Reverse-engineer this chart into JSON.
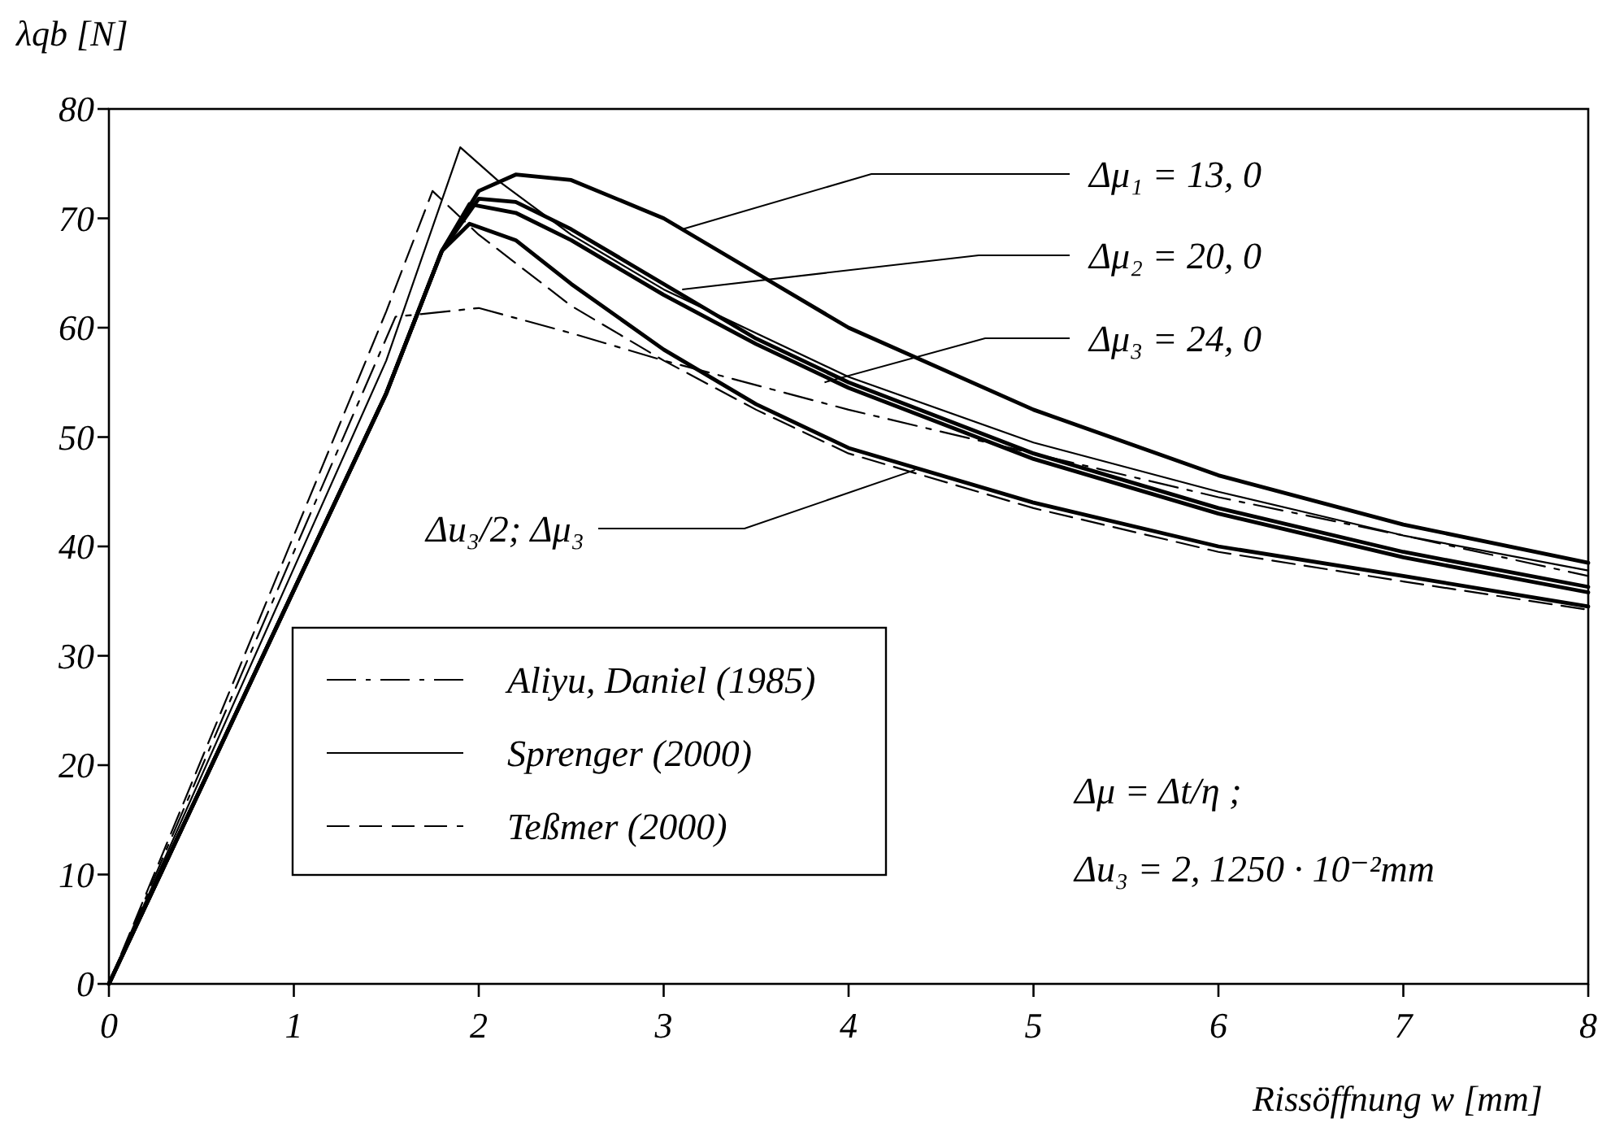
{
  "chart_data": {
    "type": "line",
    "xlabel": "Rissöffnung  w  [mm]",
    "ylabel": "λqb  [N]",
    "xlim": [
      0,
      8
    ],
    "ylim": [
      0,
      80
    ],
    "xticks": [
      0,
      1,
      2,
      3,
      4,
      5,
      6,
      7,
      8
    ],
    "yticks": [
      0,
      10,
      20,
      30,
      40,
      50,
      60,
      70,
      80
    ],
    "grid": false,
    "legend": "bottom left",
    "series": [
      {
        "name": "Aliyu, Daniel (1985)",
        "color": "#000000",
        "line_style": "dashdot",
        "x": [
          0,
          1,
          1.55,
          2,
          2.5,
          3,
          4,
          5,
          6,
          7,
          8
        ],
        "values": [
          0,
          39.5,
          61,
          61.8,
          59.5,
          57,
          52.5,
          48.5,
          44.5,
          41,
          37.3
        ]
      },
      {
        "name": "Sprenger (2000)",
        "color": "#000000",
        "line_style": "solid",
        "x": [
          0,
          1,
          1.5,
          1.9,
          2.1,
          2.5,
          3,
          4,
          5,
          6,
          7,
          8
        ],
        "values": [
          0,
          38,
          57,
          76.5,
          73.5,
          68.5,
          63.5,
          55.5,
          49.5,
          45,
          41,
          37.8
        ]
      },
      {
        "name": "Teßmer (2000)",
        "color": "#000000",
        "line_style": "dashed",
        "x": [
          0,
          1,
          1.5,
          1.75,
          2,
          2.5,
          3,
          3.5,
          4,
          5,
          6,
          7,
          8
        ],
        "values": [
          0,
          41,
          61.5,
          72.5,
          68.5,
          62,
          57,
          52.5,
          48.5,
          43.5,
          39.5,
          36.8,
          34.2
        ]
      },
      {
        "color": "#000000",
        "line_style": "solid",
        "x": [
          0,
          1,
          1.5,
          1.8,
          2,
          2.2,
          2.5,
          3,
          3.5,
          4,
          5,
          6,
          7,
          8
        ],
        "values": [
          0,
          36,
          54,
          67,
          72.5,
          74,
          73.5,
          70,
          65,
          60,
          52.5,
          46.5,
          42,
          38.5
        ]
      },
      {
        "color": "#000000",
        "line_style": "solid",
        "x": [
          0,
          1,
          1.5,
          1.8,
          2,
          2.2,
          2.5,
          3,
          3.5,
          4,
          5,
          6,
          7,
          8
        ],
        "values": [
          0,
          36,
          54,
          67,
          71.8,
          71.5,
          69,
          64,
          59,
          55,
          48.5,
          43.5,
          39.5,
          36.3
        ]
      },
      {
        "color": "#000000",
        "line_style": "solid",
        "x": [
          0,
          1,
          1.5,
          1.8,
          1.95,
          2.2,
          2.5,
          3,
          3.5,
          4,
          5,
          6,
          7,
          8
        ],
        "values": [
          0,
          36,
          54,
          67,
          71.3,
          70.5,
          68,
          63,
          58.5,
          54.5,
          48,
          43,
          39,
          35.8
        ]
      },
      {
        "color": "#000000",
        "line_style": "solid",
        "x": [
          0,
          1,
          1.5,
          1.8,
          1.95,
          2.2,
          2.5,
          3,
          3.5,
          4,
          5,
          6,
          7,
          8
        ],
        "values": [
          0,
          36,
          54,
          67,
          69.5,
          68,
          64,
          58,
          53,
          49,
          44,
          40,
          37.3,
          34.5
        ]
      }
    ],
    "annotations": [
      {
        "text": "Δμ₁ = 13, 0",
        "x": 3.1,
        "y": 69
      },
      {
        "text": "Δμ₂ = 20, 0",
        "x": 3.1,
        "y": 63.5
      },
      {
        "text": "Δμ₃ = 24, 0",
        "x": 3.87,
        "y": 55
      },
      {
        "text": "Δu₃/2; Δμ₃",
        "x": 4.36,
        "y": 47
      },
      "Δμ = Δt/η ;",
      "Δu₃ = 2, 1250 · 10⁻²mm"
    ]
  }
}
